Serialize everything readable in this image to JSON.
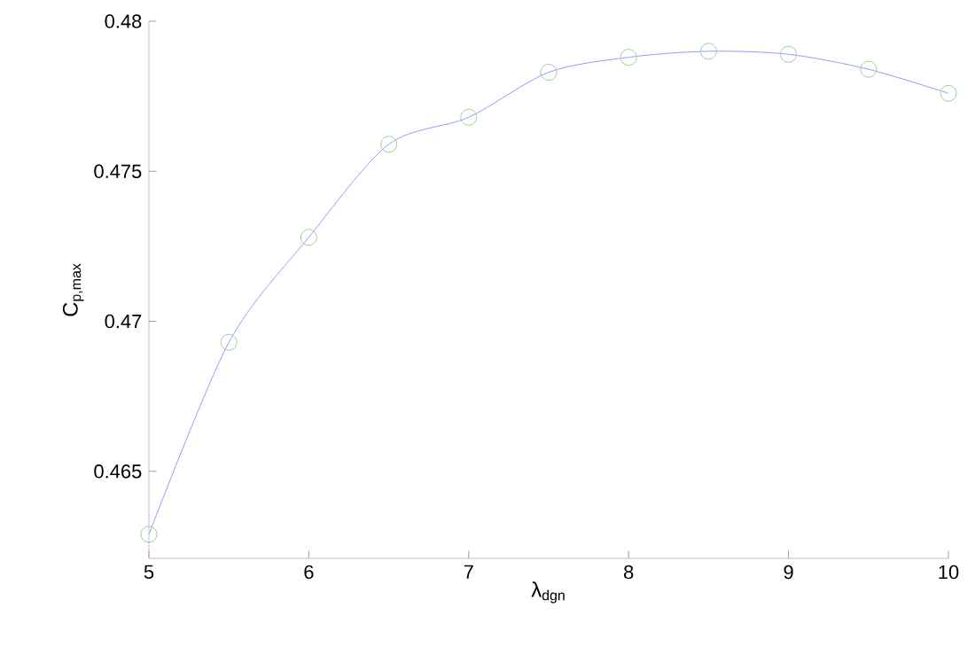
{
  "chart_data": {
    "type": "line",
    "xlabel": "λ$_{dgn}$",
    "ylabel": "C$_{p,max}$",
    "x": [
      5,
      5.5,
      6,
      6.5,
      7,
      7.5,
      8,
      8.5,
      9,
      9.5,
      10
    ],
    "series": [
      {
        "color": "#9999ff",
        "marker": "none",
        "values": [
          0.4629,
          0.4693,
          0.4728,
          0.4759,
          0.4768,
          0.4783,
          0.4788,
          0.479,
          0.4789,
          0.4784,
          0.4776
        ]
      },
      {
        "type": "scatter",
        "color": "#99cc99",
        "marker": "circle",
        "values": [
          0.4629,
          0.4693,
          0.4728,
          0.4759,
          0.4768,
          0.4783,
          0.4788,
          0.479,
          0.4789,
          0.4784,
          0.4776
        ]
      }
    ],
    "xlim": [
      5,
      10
    ],
    "ylim": [
      0.4621,
      0.48
    ],
    "xticks": [
      5,
      6,
      7,
      8,
      9,
      10
    ],
    "yticks": [
      0.465,
      0.47,
      0.475,
      0.48
    ],
    "grid": false
  }
}
